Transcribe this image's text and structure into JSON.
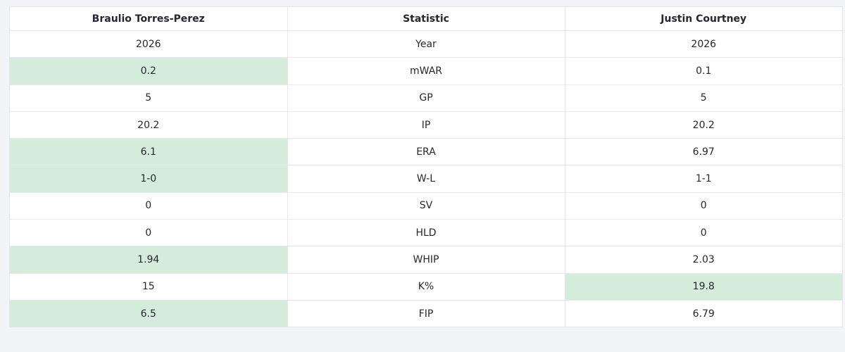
{
  "table": {
    "columns": [
      "Braulio Torres-Perez",
      "Statistic",
      "Justin Courtney"
    ],
    "highlight_color": "#d5ecdc",
    "rows": [
      {
        "cells": [
          "2026",
          "Year",
          "2026"
        ],
        "highlight": null
      },
      {
        "cells": [
          "0.2",
          "mWAR",
          "0.1"
        ],
        "highlight": "left"
      },
      {
        "cells": [
          "5",
          "GP",
          "5"
        ],
        "highlight": null
      },
      {
        "cells": [
          "20.2",
          "IP",
          "20.2"
        ],
        "highlight": null
      },
      {
        "cells": [
          "6.1",
          "ERA",
          "6.97"
        ],
        "highlight": "left"
      },
      {
        "cells": [
          "1-0",
          "W-L",
          "1-1"
        ],
        "highlight": "left"
      },
      {
        "cells": [
          "0",
          "SV",
          "0"
        ],
        "highlight": null
      },
      {
        "cells": [
          "0",
          "HLD",
          "0"
        ],
        "highlight": null
      },
      {
        "cells": [
          "1.94",
          "WHIP",
          "2.03"
        ],
        "highlight": "left"
      },
      {
        "cells": [
          "15",
          "K%",
          "19.8"
        ],
        "highlight": "right"
      },
      {
        "cells": [
          "6.5",
          "FIP",
          "6.79"
        ],
        "highlight": "left"
      }
    ]
  }
}
